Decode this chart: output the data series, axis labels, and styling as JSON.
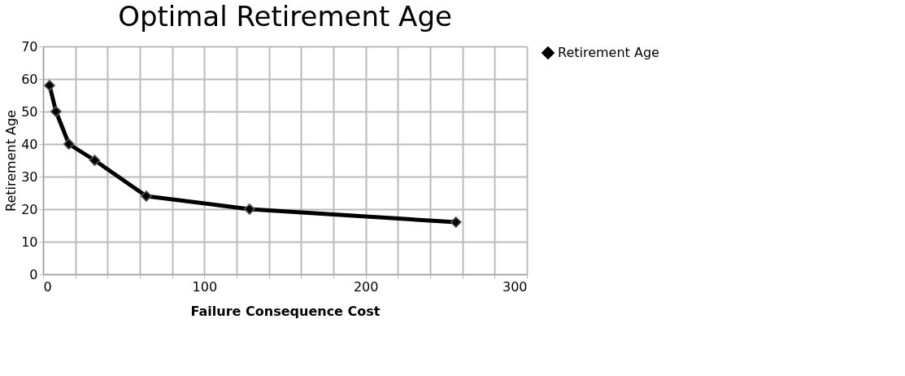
{
  "chart_data": {
    "type": "line",
    "title": "Optimal  Retirement Age",
    "xlabel": "Failure   Consequence   Cost",
    "ylabel": "Retirement Age",
    "x": [
      4,
      8,
      16,
      32,
      64,
      128,
      256
    ],
    "series": [
      {
        "name": "Retirement Age",
        "color": "#000000",
        "values": [
          58,
          50,
          40,
          35,
          24,
          20,
          16
        ]
      }
    ],
    "xlim": [
      0,
      300
    ],
    "xticks": [
      0,
      {
        "value": 20,
        "label": null
      },
      {
        "value": 40,
        "label": null
      },
      {
        "value": 60,
        "label": null
      },
      {
        "value": 80,
        "label": null
      },
      100,
      {
        "value": 120,
        "label": null
      },
      {
        "value": 140,
        "label": null
      },
      {
        "value": 160,
        "label": null
      },
      {
        "value": 180,
        "label": null
      },
      200,
      {
        "value": 220,
        "label": null
      },
      {
        "value": 240,
        "label": null
      },
      {
        "value": 260,
        "label": null
      },
      {
        "value": 280,
        "label": null
      },
      300
    ],
    "ylim": [
      0,
      70
    ],
    "yticks": [
      0,
      10,
      20,
      30,
      40,
      50,
      60,
      70
    ],
    "grid": true,
    "legend": "right",
    "marker": "diamond",
    "line_style": "solid"
  }
}
